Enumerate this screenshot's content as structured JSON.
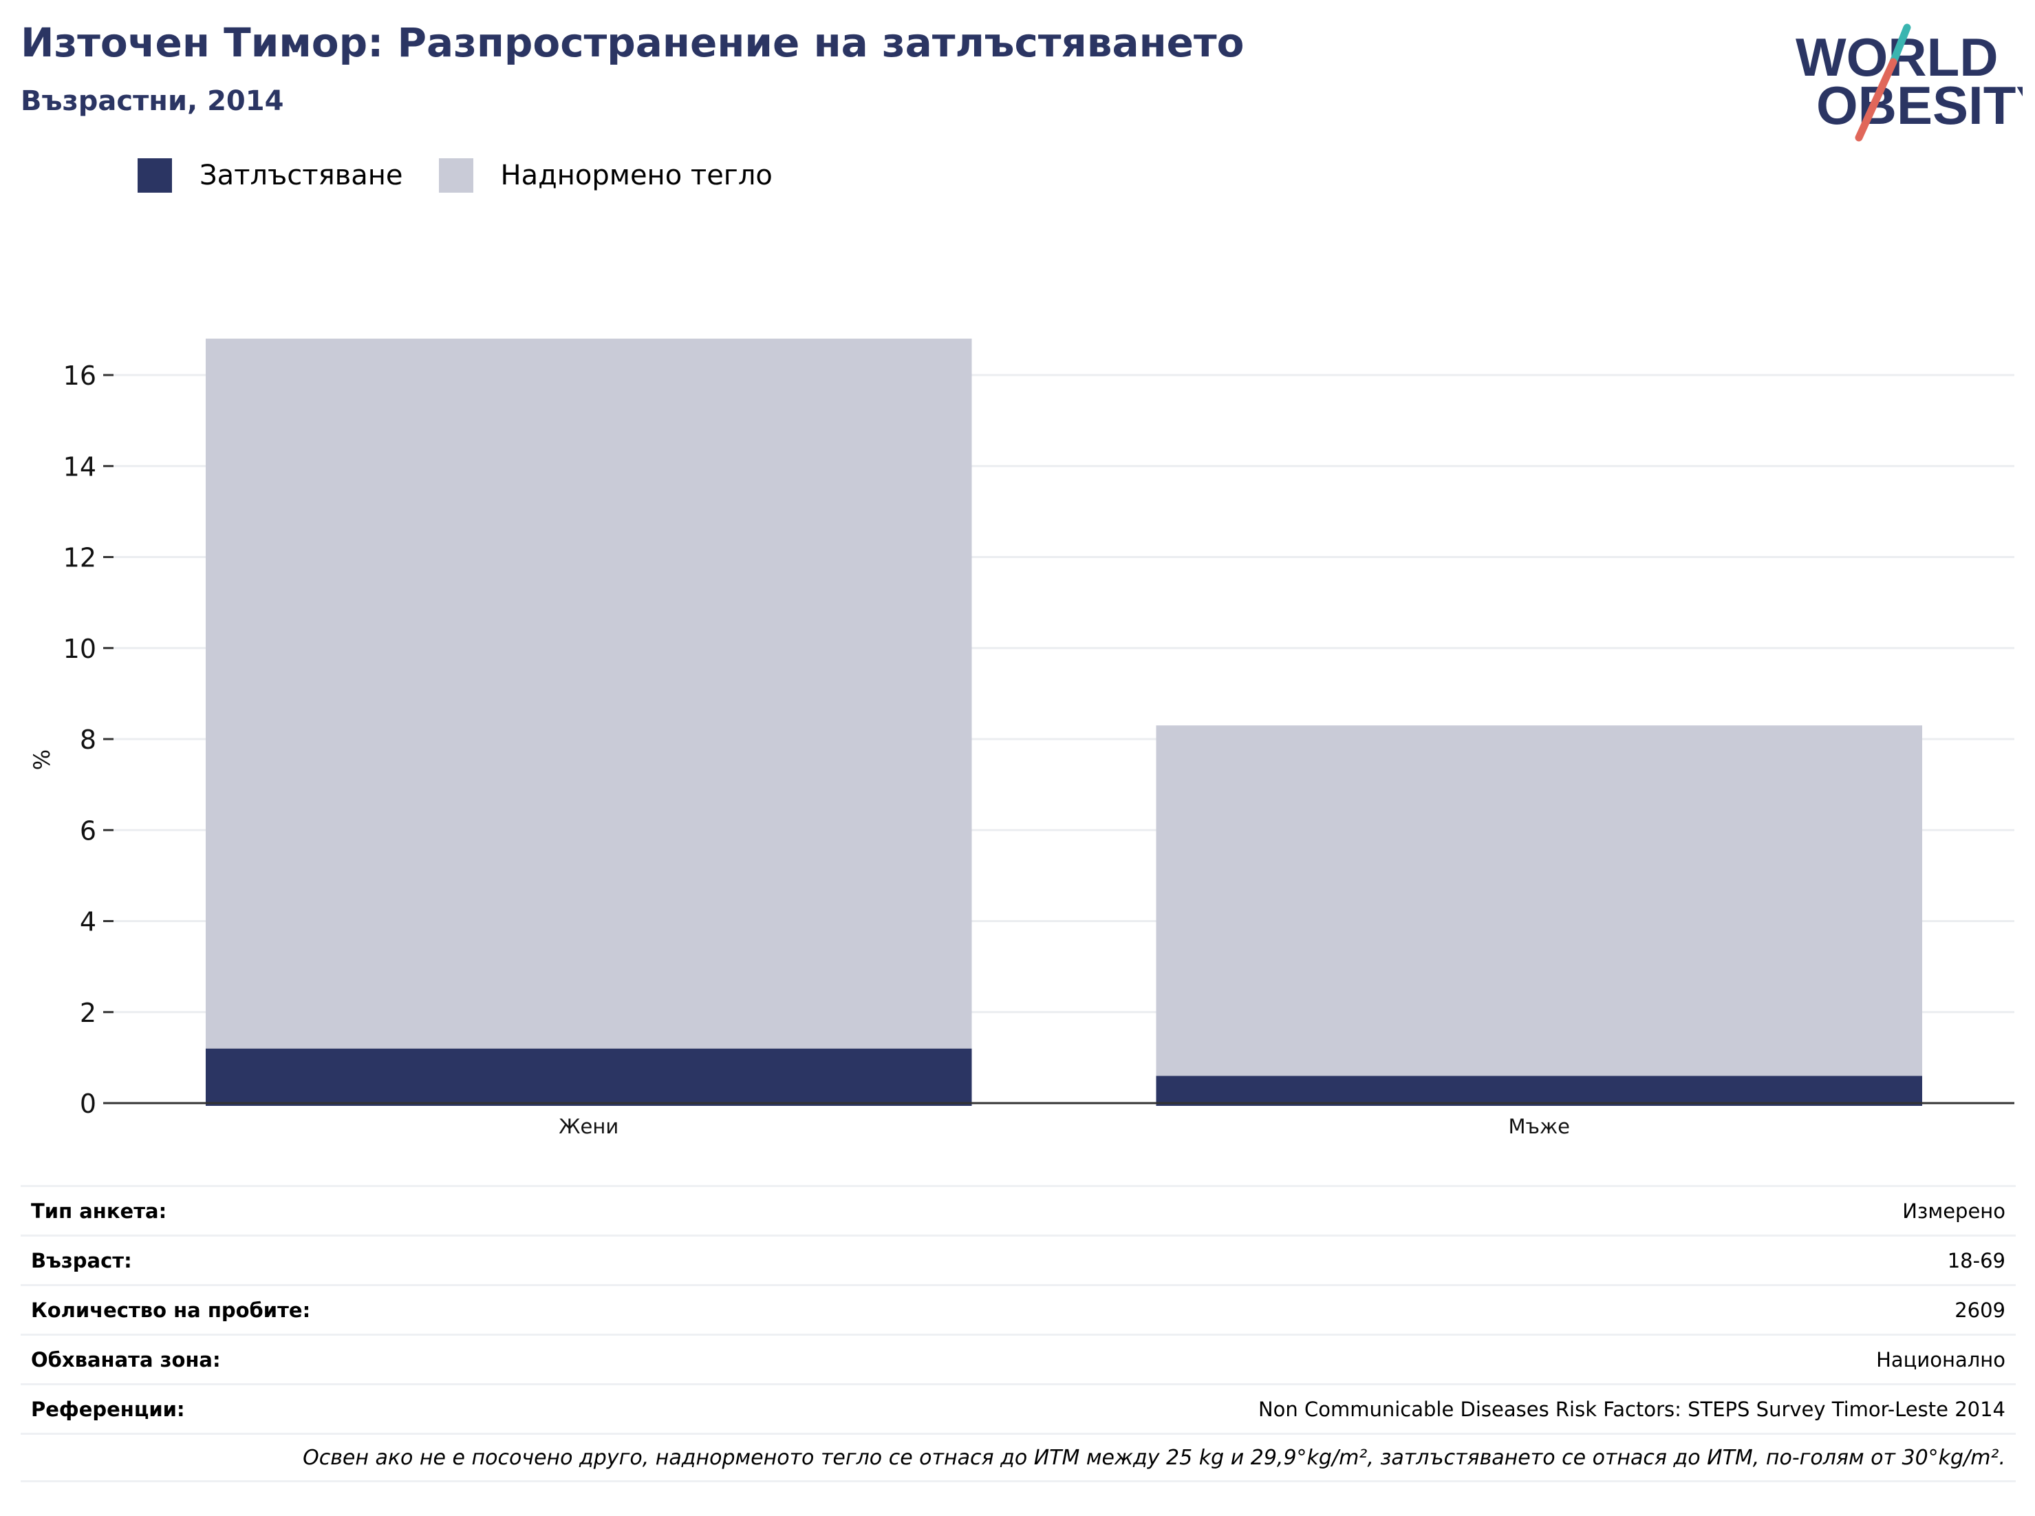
{
  "header": {
    "title": "Източен Тимор: Разпространение на затлъстяването",
    "subtitle": "Възрастни, 2014"
  },
  "logo": {
    "line1": "WORLD",
    "line2": "OBESITY",
    "colors": {
      "text": "#2b3563",
      "slash_top": "#3ab5b0",
      "slash_bottom": "#e0675a"
    }
  },
  "legend": [
    {
      "label": "Затлъстяване",
      "color": "#2b3563"
    },
    {
      "label": "Наднормено тегло",
      "color": "#c9cbd7"
    }
  ],
  "chart_data": {
    "type": "bar",
    "stacked": true,
    "categories": [
      "Жени",
      "Мъже"
    ],
    "series": [
      {
        "name": "Затлъстяване",
        "values": [
          1.2,
          0.6
        ],
        "color": "#2b3563"
      },
      {
        "name": "Наднормено тегло",
        "values": [
          15.6,
          7.7
        ],
        "color": "#c9cbd7"
      }
    ],
    "ylabel": "%",
    "ylim": [
      0,
      17
    ],
    "yticks": [
      0,
      2,
      4,
      6,
      8,
      10,
      12,
      14,
      16
    ],
    "grid": true
  },
  "meta": {
    "rows": [
      {
        "label": "Тип анкета:",
        "value": "Измерено"
      },
      {
        "label": "Възраст:",
        "value": "18-69"
      },
      {
        "label": "Количество на пробите:",
        "value": "2609"
      },
      {
        "label": "Обхваната зона:",
        "value": "Национално"
      },
      {
        "label": "Референции:",
        "value": "Non Communicable Diseases Risk Factors: STEPS Survey Timor-Leste 2014"
      }
    ],
    "note": "Освен ако не е посочено друго, наднорменото тегло се отнася до ИТМ между 25 kg и 29,9°kg/m², затлъстяването се отнася до ИТМ, по-голям от 30°kg/m²."
  }
}
